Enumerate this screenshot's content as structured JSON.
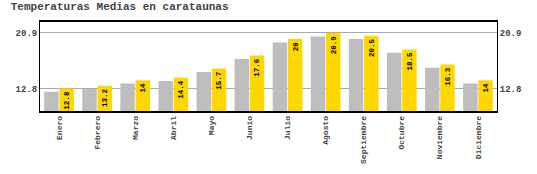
{
  "chart_data": {
    "type": "bar",
    "title": "Temperaturas Medias en carataunas",
    "categories": [
      "Enero",
      "Febrero",
      "Marzo",
      "Abril",
      "Mayo",
      "Junio",
      "Julio",
      "Agosto",
      "Septiembre",
      "Octubre",
      "Noviembre",
      "Diciembre"
    ],
    "series": [
      {
        "color": "#BEBEBE",
        "values": [
          12.3,
          12.7,
          13.5,
          13.9,
          15.2,
          17.1,
          19.5,
          20.4,
          20.0,
          18.0,
          15.8,
          13.5
        ]
      },
      {
        "color": "#FFD700",
        "values": [
          12.8,
          13.2,
          14.0,
          14.4,
          15.7,
          17.6,
          20.0,
          20.9,
          20.5,
          18.5,
          16.3,
          14.0
        ],
        "data_labels": true
      }
    ],
    "ylim": [
      9.5,
      22.5
    ],
    "yticks": [
      12.8,
      20.9
    ],
    "y2lim": [
      9.5,
      22.5
    ],
    "y2ticks": [
      12.8,
      20.9
    ],
    "grid": true
  }
}
